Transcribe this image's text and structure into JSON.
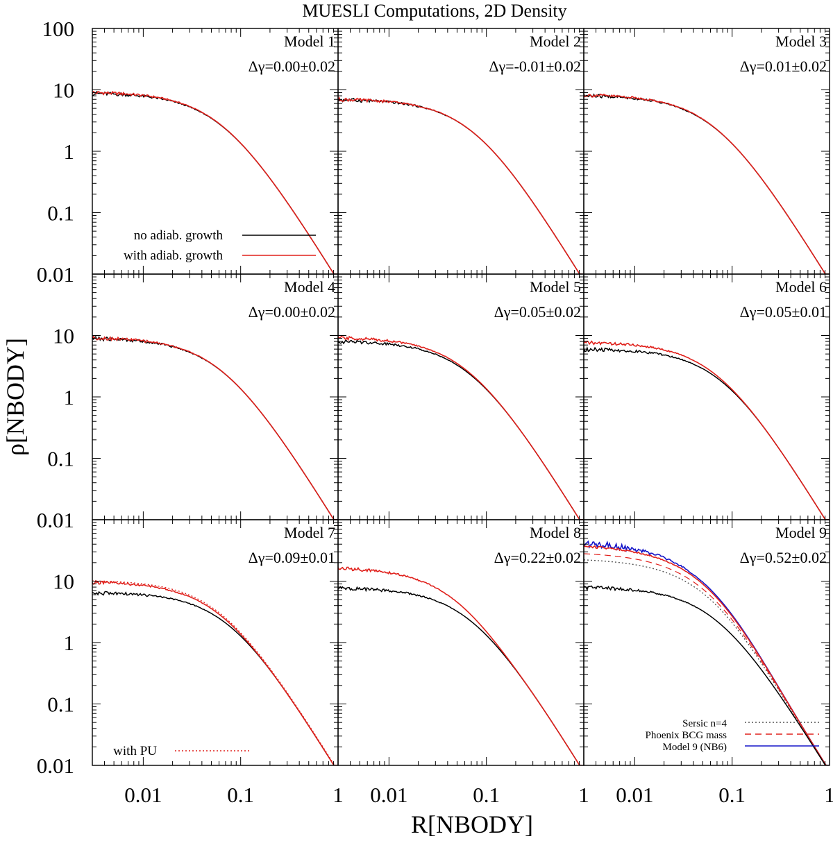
{
  "chart_data": {
    "type": "line",
    "title": "MUESLI Computations, 2D Density",
    "xlabel": "R[NBODY]",
    "ylabel": "ρ[NBODY]",
    "xscale": "log",
    "yscale": "log",
    "xlim": [
      0.003,
      1
    ],
    "ylim": [
      0.01,
      100
    ],
    "layout": "3x3 grid of panels sharing axes",
    "x_tick_labels": [
      "0.01",
      "0.1",
      "1"
    ],
    "y_tick_labels": [
      "100",
      "10",
      "1",
      "0.1",
      "0.01"
    ],
    "series_colors": {
      "no_adiab": "#000000",
      "with_adiab": "#e0201b",
      "with_pu": "#e0201b",
      "sersic": "#555555",
      "phoenix": "#e0201b",
      "nb6": "#1515c8"
    },
    "legends": {
      "panel1": [
        {
          "key": "no_adiab",
          "label": "no adiab. growth",
          "style": "solid",
          "color": "#000000"
        },
        {
          "key": "with_adiab",
          "label": "with adiab. growth",
          "style": "solid",
          "color": "#e0201b"
        }
      ],
      "panel7": [
        {
          "key": "with_pu",
          "label": "with PU",
          "style": "dotted",
          "color": "#e0201b"
        }
      ],
      "panel9": [
        {
          "key": "sersic",
          "label": "Sersic n=4",
          "style": "dotted",
          "color": "#555555"
        },
        {
          "key": "phoenix",
          "label": "Phoenix BCG mass",
          "style": "dashed",
          "color": "#e0201b"
        },
        {
          "key": "nb6",
          "label": "Model 9 (NB6)",
          "style": "solid",
          "color": "#1515c8"
        }
      ]
    },
    "panels": [
      {
        "model": "Model 1",
        "dgamma": "Δγ=0.00±0.02",
        "no_adiab_inner": 9,
        "with_adiab_inner": 9.3,
        "with_pu_inner": null
      },
      {
        "model": "Model 2",
        "dgamma": "Δγ=-0.01±0.02",
        "no_adiab_inner": 7,
        "with_adiab_inner": 7.1,
        "with_pu_inner": null
      },
      {
        "model": "Model 3",
        "dgamma": "Δγ=0.01±0.02",
        "no_adiab_inner": 8.2,
        "with_adiab_inner": 8.4,
        "with_pu_inner": null
      },
      {
        "model": "Model 4",
        "dgamma": "Δγ=0.00±0.02",
        "no_adiab_inner": 9.2,
        "with_adiab_inner": 9.4,
        "with_pu_inner": null
      },
      {
        "model": "Model 5",
        "dgamma": "Δγ=0.05±0.02",
        "no_adiab_inner": 8.2,
        "with_adiab_inner": 9.4,
        "with_pu_inner": null
      },
      {
        "model": "Model 6",
        "dgamma": "Δγ=0.05±0.01",
        "no_adiab_inner": 6,
        "with_adiab_inner": 7.8,
        "with_pu_inner": null
      },
      {
        "model": "Model 7",
        "dgamma": "Δγ=0.09±0.01",
        "no_adiab_inner": 6.5,
        "with_adiab_inner": 9.8,
        "with_pu_inner": 10
      },
      {
        "model": "Model 8",
        "dgamma": "Δγ=0.22±0.02",
        "no_adiab_inner": 7.8,
        "with_adiab_inner": 17,
        "with_pu_inner": null
      },
      {
        "model": "Model 9",
        "dgamma": "Δγ=0.52±0.02",
        "no_adiab_inner": 8,
        "with_adiab_inner": 40,
        "with_pu_inner": null,
        "sersic_inner": 24,
        "phoenix_inner": 30,
        "nb6_inner": 45
      }
    ]
  }
}
